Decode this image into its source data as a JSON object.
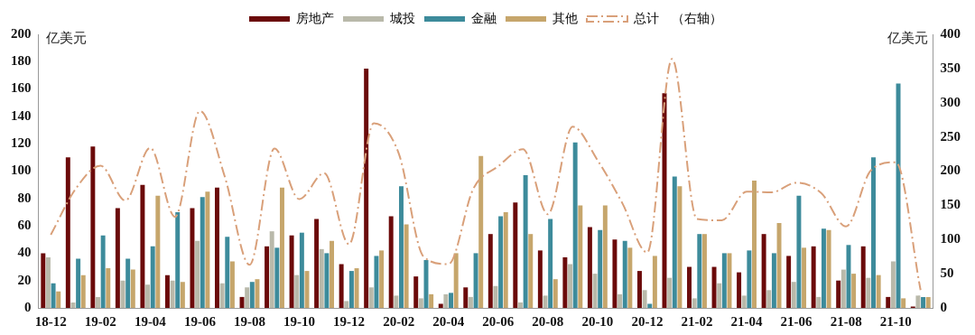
{
  "chart_data": {
    "type": "bar",
    "ylabel": "亿美元",
    "y2label": "亿美元",
    "categories": [
      "18-12",
      null,
      "19-02",
      null,
      "19-04",
      null,
      "19-06",
      null,
      "19-08",
      null,
      "19-10",
      null,
      "19-12",
      null,
      "20-02",
      null,
      "20-04",
      null,
      "20-06",
      null,
      "20-08",
      null,
      "20-10",
      null,
      "20-12",
      null,
      "21-02",
      null,
      "21-04",
      null,
      "21-06",
      null,
      "21-08",
      null,
      "21-10",
      null
    ],
    "series": [
      {
        "name": "房地产",
        "color": "#6b0a0a",
        "values": [
          40,
          110,
          118,
          73,
          90,
          24,
          73,
          88,
          8,
          45,
          53,
          65,
          32,
          175,
          67,
          23,
          3,
          15,
          54,
          77,
          42,
          37,
          59,
          50,
          27,
          157,
          30,
          30,
          26,
          54,
          38,
          45,
          20,
          45,
          8,
          1
        ]
      },
      {
        "name": "城投",
        "color": "#b9b9aa",
        "values": [
          37,
          4,
          8,
          20,
          17,
          20,
          49,
          18,
          15,
          56,
          24,
          43,
          5,
          15,
          9,
          7,
          10,
          8,
          16,
          4,
          9,
          32,
          25,
          10,
          13,
          22,
          7,
          18,
          9,
          13,
          19,
          8,
          28,
          22,
          34,
          9
        ]
      },
      {
        "name": "金融",
        "color": "#3d8b9b",
        "values": [
          18,
          36,
          53,
          36,
          45,
          70,
          81,
          52,
          19,
          44,
          55,
          40,
          27,
          38,
          89,
          35,
          11,
          40,
          67,
          97,
          65,
          121,
          57,
          49,
          3,
          96,
          54,
          40,
          42,
          40,
          82,
          58,
          46,
          110,
          164,
          8
        ]
      },
      {
        "name": "其他",
        "color": "#c6a66c",
        "values": [
          12,
          24,
          29,
          28,
          82,
          19,
          85,
          34,
          21,
          88,
          27,
          49,
          29,
          42,
          61,
          10,
          40,
          111,
          70,
          54,
          21,
          75,
          75,
          44,
          38,
          89,
          54,
          40,
          93,
          62,
          44,
          57,
          25,
          24,
          7,
          8
        ]
      },
      {
        "name": "总计　（右轴）",
        "type": "line",
        "axis": "y2",
        "color": "#d9a07a",
        "line_style": "dashed",
        "marker": "none",
        "values": [
          107,
          174,
          208,
          157,
          234,
          133,
          288,
          192,
          63,
          233,
          159,
          197,
          93,
          270,
          226,
          75,
          64,
          174,
          207,
          232,
          137,
          265,
          216,
          153,
          81,
          364,
          130,
          128,
          170,
          169,
          183,
          168,
          119,
          201,
          213,
          26
        ]
      }
    ],
    "ylim": [
      0,
      200
    ],
    "yticks": [
      0,
      20,
      40,
      60,
      80,
      100,
      120,
      140,
      160,
      180,
      200
    ],
    "y2lim": [
      0,
      400
    ],
    "y2ticks": [
      0,
      50,
      100,
      150,
      200,
      250,
      300,
      350,
      400
    ],
    "grid": false,
    "legend": "top"
  }
}
